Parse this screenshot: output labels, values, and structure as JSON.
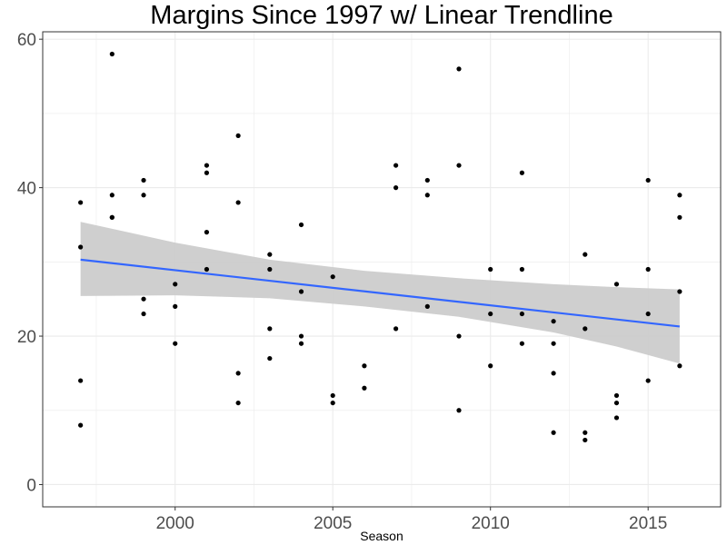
{
  "chart_data": {
    "type": "scatter",
    "title": "Margins Since 1997 w/ Linear Trendline",
    "xlabel": "Season",
    "ylabel": "",
    "xlim": [
      1995.8,
      2017.3
    ],
    "ylim": [
      -3,
      61
    ],
    "x_ticks": [
      2000,
      2005,
      2010,
      2015
    ],
    "y_ticks": [
      0,
      20,
      40,
      60
    ],
    "x_tick_labels": [
      "2000",
      "2005",
      "2010",
      "2015"
    ],
    "y_tick_labels": [
      "0",
      "20",
      "40",
      "60"
    ],
    "grid": true,
    "points": [
      [
        1997,
        38
      ],
      [
        1997,
        32
      ],
      [
        1997,
        14
      ],
      [
        1997,
        8
      ],
      [
        1998,
        58
      ],
      [
        1998,
        39
      ],
      [
        1998,
        36
      ],
      [
        1998,
        36
      ],
      [
        1999,
        41
      ],
      [
        1999,
        39
      ],
      [
        1999,
        25
      ],
      [
        1999,
        23
      ],
      [
        2000,
        27
      ],
      [
        2000,
        24
      ],
      [
        2000,
        19
      ],
      [
        2001,
        43
      ],
      [
        2001,
        42
      ],
      [
        2001,
        34
      ],
      [
        2001,
        29
      ],
      [
        2002,
        47
      ],
      [
        2002,
        38
      ],
      [
        2002,
        15
      ],
      [
        2002,
        11
      ],
      [
        2003,
        31
      ],
      [
        2003,
        29
      ],
      [
        2003,
        21
      ],
      [
        2003,
        17
      ],
      [
        2004,
        35
      ],
      [
        2004,
        26
      ],
      [
        2004,
        20
      ],
      [
        2004,
        19
      ],
      [
        2005,
        28
      ],
      [
        2005,
        12
      ],
      [
        2005,
        11
      ],
      [
        2006,
        16
      ],
      [
        2006,
        13
      ],
      [
        2007,
        43
      ],
      [
        2007,
        40
      ],
      [
        2007,
        21
      ],
      [
        2008,
        41
      ],
      [
        2008,
        39
      ],
      [
        2008,
        24
      ],
      [
        2009,
        56
      ],
      [
        2009,
        43
      ],
      [
        2009,
        20
      ],
      [
        2009,
        10
      ],
      [
        2010,
        29
      ],
      [
        2010,
        23
      ],
      [
        2010,
        16
      ],
      [
        2011,
        42
      ],
      [
        2011,
        29
      ],
      [
        2011,
        23
      ],
      [
        2011,
        19
      ],
      [
        2012,
        22
      ],
      [
        2012,
        19
      ],
      [
        2012,
        15
      ],
      [
        2012,
        7
      ],
      [
        2013,
        31
      ],
      [
        2013,
        21
      ],
      [
        2013,
        7
      ],
      [
        2013,
        6
      ],
      [
        2014,
        27
      ],
      [
        2014,
        12
      ],
      [
        2014,
        11
      ],
      [
        2014,
        9
      ],
      [
        2015,
        41
      ],
      [
        2015,
        29
      ],
      [
        2015,
        23
      ],
      [
        2015,
        14
      ],
      [
        2016,
        39
      ],
      [
        2016,
        36
      ],
      [
        2016,
        26
      ],
      [
        2016,
        16
      ]
    ],
    "trendline": {
      "type": "linear",
      "x": [
        1997,
        2016
      ],
      "y": [
        30.3,
        21.3
      ],
      "color": "#3366ff"
    },
    "confidence_band": {
      "x": [
        1997,
        2000,
        2003,
        2006,
        2009,
        2012,
        2014,
        2016
      ],
      "upper": [
        35.4,
        32.6,
        30.3,
        28.8,
        27.8,
        27.0,
        26.6,
        26.3
      ],
      "lower": [
        25.4,
        25.5,
        25.1,
        24.0,
        22.6,
        20.5,
        18.6,
        16.3
      ],
      "color": "#cccccc"
    },
    "point_color": "#000000",
    "panel_border_color": "#333333",
    "grid_color": "#ebebeb"
  }
}
